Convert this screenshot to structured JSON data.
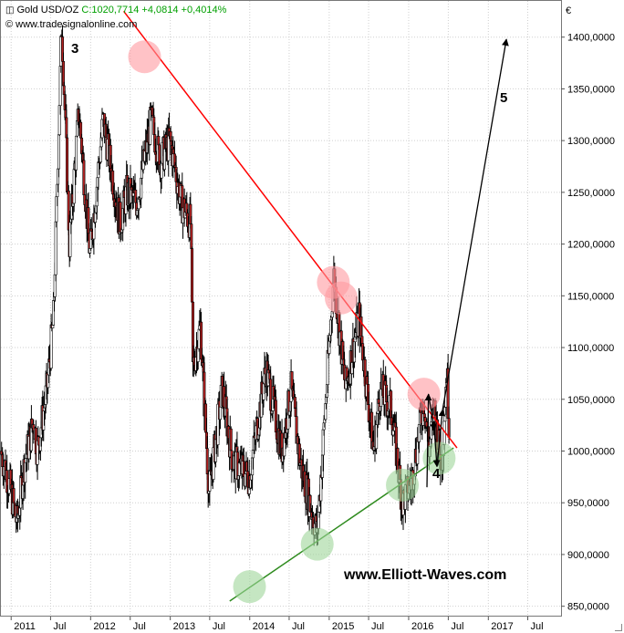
{
  "header": {
    "symbol_icon": "chart-icon",
    "instrument": "Gold USD/OZ",
    "quote": "C:1020,7714 +4,0814 +0,4014%",
    "source": "© www.tradesignalonline.com"
  },
  "currency": "€",
  "annotations": {
    "wave3": "3",
    "wave4": "4",
    "wave5": "5"
  },
  "brand": "www.Elliott-Waves.com",
  "colors": {
    "up": "#ffffff",
    "down": "#b22222",
    "wick": "#000000",
    "resistance": "#ff0000",
    "support": "#2e8b1e",
    "resistance_circle": "#ff9aa0",
    "support_circle": "#9fd59a",
    "grid": "#cfcfcf",
    "quote": "#00a000"
  },
  "chart_data": {
    "type": "line",
    "title": "",
    "xlabel": "",
    "ylabel": "",
    "x_ticks": [
      "2011",
      "Jul",
      "2012",
      "Jul",
      "2013",
      "Jul",
      "2014",
      "Jul",
      "2015",
      "Jul",
      "2016",
      "Jul",
      "2017",
      "Jul"
    ],
    "y_ticks": [
      "850,0000",
      "900,0000",
      "950,0000",
      "1000,0000",
      "1050,0000",
      "1100,0000",
      "1150,0000",
      "1200,0000",
      "1250,0000",
      "1300,0000",
      "1350,0000",
      "1400,0000"
    ],
    "ylim": [
      840,
      1435
    ],
    "xlim": [
      "2010-11-15",
      "2017-12-01"
    ],
    "grid": true,
    "price": {
      "dates": [
        "2010-11-15",
        "2011-01-01",
        "2011-01-28",
        "2011-03-01",
        "2011-04-15",
        "2011-05-01",
        "2011-06-15",
        "2011-07-15",
        "2011-08-10",
        "2011-08-22",
        "2011-09-05",
        "2011-09-26",
        "2011-11-08",
        "2011-12-29",
        "2012-02-28",
        "2012-05-16",
        "2012-06-15",
        "2012-08-01",
        "2012-10-05",
        "2012-11-15",
        "2013-01-01",
        "2013-02-20",
        "2013-04-05",
        "2013-04-15",
        "2013-05-20",
        "2013-06-28",
        "2013-08-28",
        "2013-10-15",
        "2013-12-31",
        "2014-03-17",
        "2014-05-28",
        "2014-07-10",
        "2014-08-20",
        "2014-11-07",
        "2015-01-22",
        "2015-03-17",
        "2015-05-18",
        "2015-07-24",
        "2015-08-24",
        "2015-10-14",
        "2015-12-03",
        "2016-01-15",
        "2016-03-11",
        "2016-04-05",
        "2016-04-28",
        "2016-05-31",
        "2016-06-24",
        "2016-07-06"
      ],
      "values": [
        1000,
        960,
        930,
        985,
        1030,
        1000,
        1060,
        1130,
        1330,
        1410,
        1330,
        1200,
        1330,
        1190,
        1320,
        1220,
        1250,
        1240,
        1320,
        1280,
        1300,
        1240,
        1220,
        1080,
        1120,
        960,
        1060,
        990,
        975,
        1080,
        1000,
        1060,
        990,
        920,
        1170,
        1060,
        1130,
        1000,
        1060,
        1040,
        950,
        970,
        1050,
        1000,
        1040,
        985,
        1080,
        1020
      ]
    },
    "resistance_line": {
      "x": [
        "2012-06-01",
        "2016-08-10"
      ],
      "y": [
        1425,
        1003
      ]
    },
    "support_line": {
      "x": [
        "2013-10-01",
        "2016-07-25"
      ],
      "y": [
        855,
        1003
      ]
    },
    "resistance_touches": [
      {
        "x": "2012-09-05",
        "y": 1381
      },
      {
        "x": "2015-01-20",
        "y": 1163
      },
      {
        "x": "2015-02-25",
        "y": 1148
      },
      {
        "x": "2016-03-11",
        "y": 1055
      }
    ],
    "support_touches": [
      {
        "x": "2013-12-31",
        "y": 869
      },
      {
        "x": "2014-11-07",
        "y": 910
      },
      {
        "x": "2015-12-03",
        "y": 967
      },
      {
        "x": "2016-05-20",
        "y": 993
      }
    ],
    "projection": {
      "x": [
        "2016-03-25",
        "2016-04-01",
        "2016-04-28",
        "2016-05-10",
        "2016-06-05",
        "2017-03-25"
      ],
      "y": [
        965,
        1055,
        1020,
        985,
        1040,
        1398
      ]
    }
  }
}
